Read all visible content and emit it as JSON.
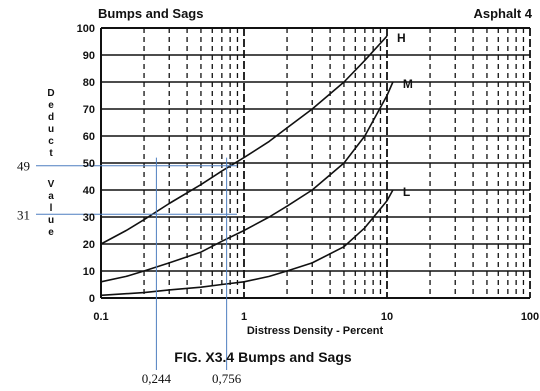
{
  "chart_data": {
    "type": "line",
    "title_left": "Bumps and Sags",
    "title_right": "Asphalt 4",
    "caption": "FIG. X3.4 Bumps and Sags",
    "xlabel": "Distress Density - Percent",
    "ylabel": "Deduct Value",
    "xscale": "log",
    "xlim": [
      0.1,
      100
    ],
    "ylim": [
      0,
      100
    ],
    "grid": true,
    "x_tick_labels": [
      "0.1",
      "1",
      "10",
      "100"
    ],
    "y_tick_labels": [
      "0",
      "10",
      "20",
      "30",
      "40",
      "50",
      "60",
      "70",
      "80",
      "90",
      "100"
    ],
    "series": [
      {
        "name": "H",
        "x": [
          0.1,
          0.15,
          0.2,
          0.3,
          0.5,
          0.7,
          1,
          1.5,
          2,
          3,
          5,
          7,
          10
        ],
        "y": [
          20,
          25,
          29,
          35,
          42,
          47,
          52,
          58,
          63,
          70,
          80,
          88,
          97
        ]
      },
      {
        "name": "M",
        "x": [
          0.1,
          0.15,
          0.2,
          0.3,
          0.5,
          0.7,
          1,
          1.5,
          2,
          3,
          5,
          7,
          10,
          11
        ],
        "y": [
          6,
          8,
          10,
          13,
          17,
          21,
          25,
          30,
          34,
          40,
          50,
          60,
          75,
          80
        ]
      },
      {
        "name": "L",
        "x": [
          0.1,
          0.2,
          0.3,
          0.5,
          0.7,
          1,
          1.5,
          2,
          3,
          5,
          7,
          10,
          11
        ],
        "y": [
          1,
          2,
          3,
          4,
          5,
          6,
          8,
          10,
          13,
          19,
          26,
          36,
          40
        ]
      }
    ],
    "annotations": [
      {
        "label": "49",
        "y": 49
      },
      {
        "label": "31",
        "y": 31
      },
      {
        "label": "0,244",
        "x": 0.244
      },
      {
        "label": "0,756",
        "x": 0.756
      }
    ]
  }
}
